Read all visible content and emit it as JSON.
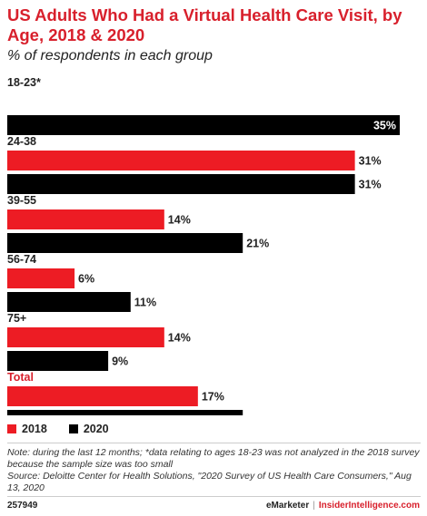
{
  "title": "US Adults Who Had a Virtual Health Care Visit, by Age, 2018 & 2020",
  "subtitle": "% of respondents in each group",
  "colors": {
    "accent": "#d8202c",
    "series_2018": "#ed1c24",
    "series_2020": "#000000"
  },
  "chart_data": {
    "type": "bar",
    "orientation": "horizontal",
    "categories": [
      "18-23*",
      "24-38",
      "39-55",
      "56-74",
      "75+",
      "Total"
    ],
    "series": [
      {
        "name": "2018",
        "values": [
          null,
          31,
          14,
          6,
          14,
          17
        ],
        "labels": [
          "",
          "31%",
          "14%",
          "6%",
          "14%",
          "17%"
        ]
      },
      {
        "name": "2020",
        "values": [
          35,
          31,
          21,
          11,
          9,
          21
        ],
        "labels": [
          "35%",
          "31%",
          "21%",
          "11%",
          "9%",
          "21%"
        ]
      }
    ],
    "xlim": [
      0,
      35
    ],
    "highlight_category": "Total",
    "legend_position": "bottom-left"
  },
  "note": "Note: during the last 12 months; *data relating to ages 18-23 was not analyzed in the 2018 survey because the sample size was too small",
  "source": "Source: Deloitte Center for Health Solutions, \"2020 Survey of US Health Care Consumers,\" Aug 13, 2020",
  "footer": {
    "id": "257949",
    "brand_left": "eMarketer",
    "separator": "|",
    "brand_right": "InsiderIntelligence.com"
  }
}
